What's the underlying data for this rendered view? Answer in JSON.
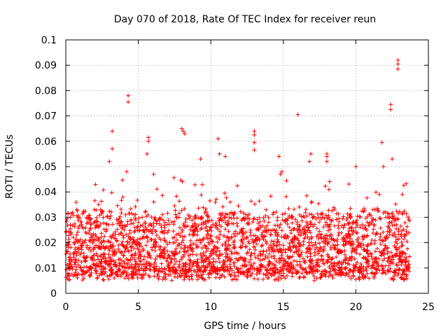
{
  "chart_data": {
    "type": "scatter",
    "title": "Day 070 of 2018, Rate Of TEC Index for receiver reun",
    "xlabel": "GPS time / hours",
    "ylabel": "ROTI / TECUs",
    "xlim": [
      0,
      25
    ],
    "ylim": [
      0,
      0.1
    ],
    "xticks": [
      0,
      5,
      10,
      15,
      20,
      25
    ],
    "xtick_labels": [
      "0",
      "5",
      "10",
      "15",
      "20",
      "25"
    ],
    "yticks": [
      0,
      0.01,
      0.02,
      0.03,
      0.04,
      0.05,
      0.06,
      0.07,
      0.08,
      0.09,
      0.1
    ],
    "ytick_labels": [
      "0",
      "0.01",
      "0.02",
      "0.03",
      "0.04",
      "0.05",
      "0.06",
      "0.07",
      "0.08",
      "0.09",
      "0.1"
    ],
    "grid": true,
    "marker": "+",
    "color": "#ff0000",
    "data_x_range": [
      0,
      23.7
    ],
    "bulk_range": [
      0.005,
      0.03
    ],
    "highlighted_points": [
      {
        "x": 3.2,
        "y": 0.064
      },
      {
        "x": 3.2,
        "y": 0.057
      },
      {
        "x": 3.0,
        "y": 0.052
      },
      {
        "x": 4.3,
        "y": 0.078
      },
      {
        "x": 4.3,
        "y": 0.0755
      },
      {
        "x": 4.2,
        "y": 0.048
      },
      {
        "x": 5.7,
        "y": 0.0615
      },
      {
        "x": 5.7,
        "y": 0.06
      },
      {
        "x": 5.6,
        "y": 0.055
      },
      {
        "x": 8.0,
        "y": 0.065
      },
      {
        "x": 8.1,
        "y": 0.064
      },
      {
        "x": 8.2,
        "y": 0.063
      },
      {
        "x": 9.3,
        "y": 0.053
      },
      {
        "x": 10.5,
        "y": 0.061
      },
      {
        "x": 10.6,
        "y": 0.055
      },
      {
        "x": 11.0,
        "y": 0.054
      },
      {
        "x": 13.0,
        "y": 0.064
      },
      {
        "x": 13.0,
        "y": 0.0625
      },
      {
        "x": 13.0,
        "y": 0.0595
      },
      {
        "x": 13.0,
        "y": 0.0565
      },
      {
        "x": 14.7,
        "y": 0.054
      },
      {
        "x": 14.9,
        "y": 0.048
      },
      {
        "x": 14.8,
        "y": 0.047
      },
      {
        "x": 16.0,
        "y": 0.0705
      },
      {
        "x": 16.9,
        "y": 0.055
      },
      {
        "x": 16.8,
        "y": 0.052
      },
      {
        "x": 18.0,
        "y": 0.055
      },
      {
        "x": 18.0,
        "y": 0.054
      },
      {
        "x": 18.0,
        "y": 0.052
      },
      {
        "x": 20.0,
        "y": 0.05
      },
      {
        "x": 21.8,
        "y": 0.0595
      },
      {
        "x": 21.9,
        "y": 0.05
      },
      {
        "x": 22.4,
        "y": 0.0745
      },
      {
        "x": 22.4,
        "y": 0.0725
      },
      {
        "x": 22.5,
        "y": 0.053
      },
      {
        "x": 22.9,
        "y": 0.092
      },
      {
        "x": 22.9,
        "y": 0.0905
      },
      {
        "x": 22.9,
        "y": 0.0885
      },
      {
        "x": 23.2,
        "y": 0.039
      }
    ]
  }
}
